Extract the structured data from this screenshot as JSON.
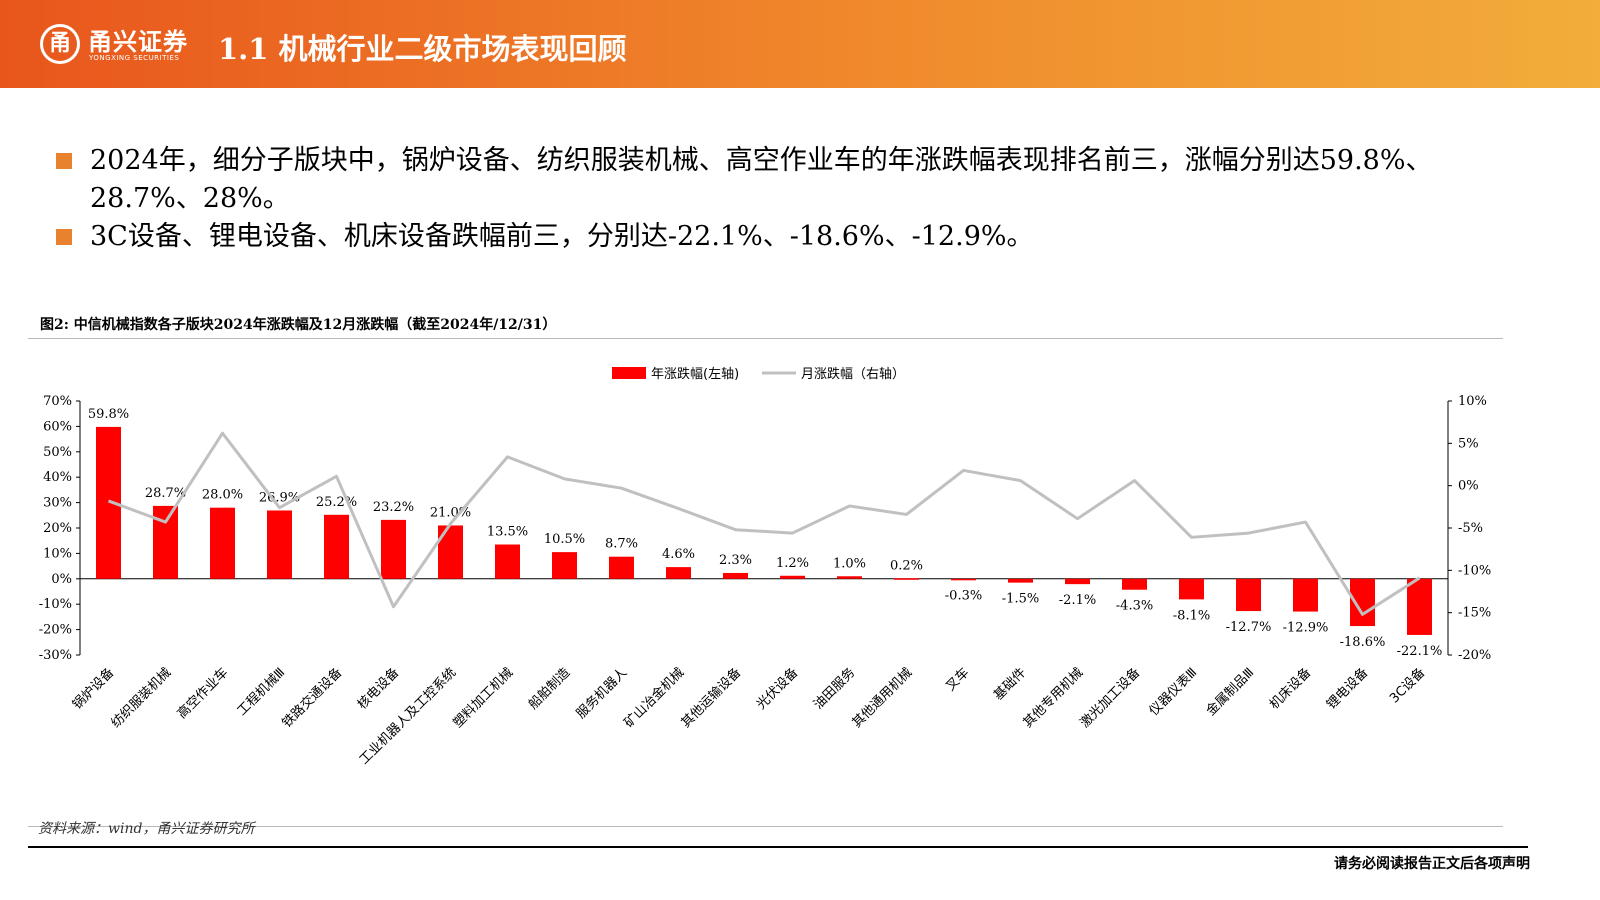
{
  "header": {
    "logo_cn": "甬兴证券",
    "logo_en": "YONGXING SECURITIES",
    "title": "1.1 机械行业二级市场表现回顾"
  },
  "bullets": [
    "2024年，细分子版块中，锅炉设备、纺织服装机械、高空作业车的年涨跌幅表现排名前三，涨幅分别达59.8%、28.7%、28%。",
    "3C设备、锂电设备、机床设备跌幅前三，分别达-22.1%、-18.6%、-12.9%。"
  ],
  "figure_title": "图2: 中信机械指数各子版块2024年涨跌幅及12月涨跌幅（截至2024年/12/31）",
  "source": "资料来源：wind，甬兴证券研究所",
  "footer": "请务必阅读报告正文后各项声明",
  "colors": {
    "bar": "#ff0000",
    "line": "#c0c0c0",
    "accent": "#e8822f"
  },
  "chart_data": {
    "type": "bar",
    "categories": [
      "锅炉设备",
      "纺织服装机械",
      "高空作业车",
      "工程机械Ⅲ",
      "铁路交通设备",
      "核电设备",
      "工业机器人及工控系统",
      "塑料加工机械",
      "船舶制造",
      "服务机器人",
      "矿山冶金机械",
      "其他运输设备",
      "光伏设备",
      "油田服务",
      "其他通用机械",
      "叉车",
      "基础件",
      "其他专用机械",
      "激光加工设备",
      "仪器仪表Ⅲ",
      "金属制品Ⅲ",
      "机床设备",
      "锂电设备",
      "3C设备"
    ],
    "series": [
      {
        "name": "年涨跌幅(左轴)",
        "type": "bar",
        "axis": "left",
        "values": [
          59.8,
          28.7,
          28.0,
          26.9,
          25.2,
          23.2,
          21.0,
          13.5,
          10.5,
          8.7,
          4.6,
          2.3,
          1.2,
          1.0,
          0.2,
          -0.3,
          -1.5,
          -2.1,
          -4.3,
          -8.1,
          -12.7,
          -12.9,
          -18.6,
          -22.1
        ],
        "labels": [
          "59.8%",
          "28.7%",
          "28.0%",
          "26.9%",
          "25.2%",
          "23.2%",
          "21.0%",
          "13.5%",
          "10.5%",
          "8.7%",
          "4.6%",
          "2.3%",
          "1.2%",
          "1.0%",
          "0.2%",
          "-0.3%",
          "-1.5%",
          "-2.1%",
          "-4.3%",
          "-8.1%",
          "-12.7%",
          "-12.9%",
          "-18.6%",
          "-22.1%"
        ]
      },
      {
        "name": "月涨跌幅（右轴）",
        "type": "line",
        "axis": "right",
        "values": [
          -1.8,
          -4.3,
          6.2,
          -2.6,
          1.1,
          -14.3,
          -4.5,
          3.4,
          0.8,
          -0.3,
          -2.7,
          -5.2,
          -5.6,
          -2.4,
          -3.4,
          1.8,
          0.6,
          -3.9,
          0.6,
          -6.1,
          -5.6,
          -4.3,
          -15.2,
          -10.9
        ]
      }
    ],
    "left_axis": {
      "ylim": [
        -30,
        70
      ],
      "ticks": [
        "70%",
        "60%",
        "50%",
        "40%",
        "30%",
        "20%",
        "10%",
        "0%",
        "-10%",
        "-20%",
        "-30%"
      ]
    },
    "right_axis": {
      "ylim": [
        -20,
        10
      ],
      "ticks": [
        "10%",
        "5%",
        "0%",
        "-5%",
        "-10%",
        "-15%",
        "-20%"
      ]
    },
    "legend_position": "top-center",
    "grid": false
  }
}
